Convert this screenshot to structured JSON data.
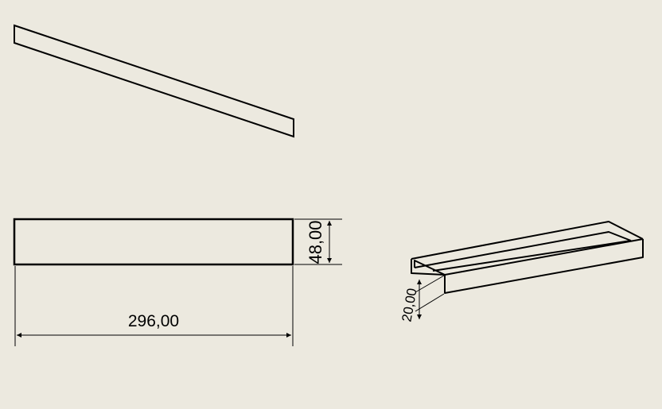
{
  "drawing": {
    "background_color": "#ECE9DF",
    "line_color": "#000000",
    "dimensions": {
      "length": "296,00",
      "height": "48,00",
      "depth": "20,00"
    }
  }
}
